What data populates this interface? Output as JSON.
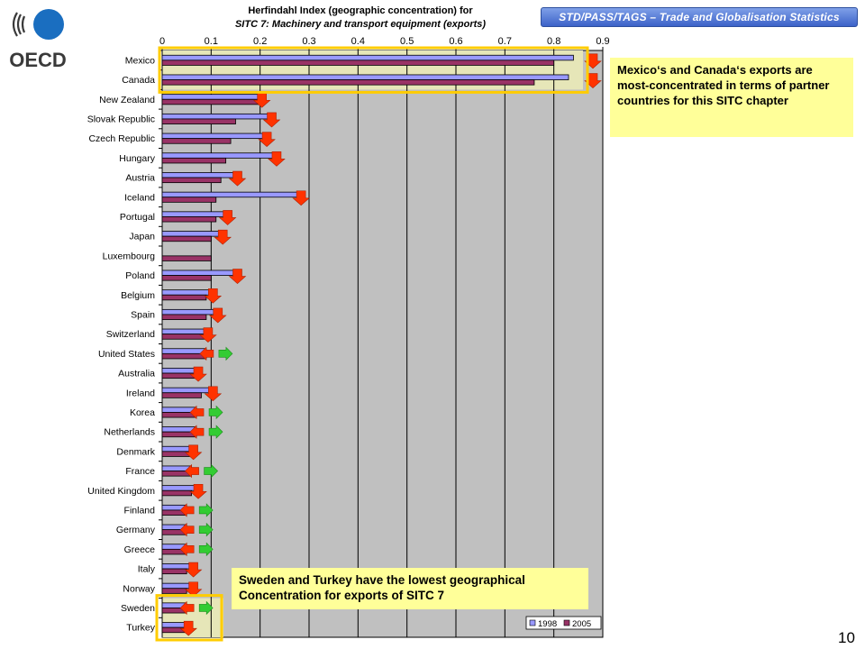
{
  "header": {
    "banner": "STD/PASS/TAGS – Trade and Globalisation Statistics",
    "logo_text": "OECD"
  },
  "chart_data": {
    "type": "bar",
    "orientation": "horizontal",
    "title_line1": "Herfindahl Index (geographic concentration) for",
    "title_line2": "SITC 7: Machinery and transport equipment (exports)",
    "xlim": [
      0,
      0.9
    ],
    "xticks": [
      "0",
      "0.1",
      "0.2",
      "0.3",
      "0.4",
      "0.5",
      "0.6",
      "0.7",
      "0.8",
      "0.9"
    ],
    "categories": [
      "Mexico",
      "Canada",
      "New Zealand",
      "Slovak Republic",
      "Czech Republic",
      "Hungary",
      "Austria",
      "Iceland",
      "Portugal",
      "Japan",
      "Luxembourg",
      "Poland",
      "Belgium",
      "Spain",
      "Switzerland",
      "United States",
      "Australia",
      "Ireland",
      "Korea",
      "Netherlands",
      "Denmark",
      "France",
      "United Kingdom",
      "Finland",
      "Germany",
      "Greece",
      "Italy",
      "Norway",
      "Sweden",
      "Turkey"
    ],
    "series": [
      {
        "name": "1998",
        "color": "#9999ff",
        "values": [
          0.84,
          0.83,
          0.2,
          0.22,
          0.21,
          0.23,
          0.15,
          0.28,
          0.13,
          0.12,
          0.0,
          0.15,
          0.1,
          0.11,
          0.09,
          0.09,
          0.07,
          0.1,
          0.07,
          0.07,
          0.06,
          0.06,
          0.07,
          0.05,
          0.05,
          0.05,
          0.06,
          0.06,
          0.05,
          0.05
        ]
      },
      {
        "name": "2005",
        "color": "#993366",
        "values": [
          0.8,
          0.76,
          0.2,
          0.15,
          0.14,
          0.13,
          0.12,
          0.11,
          0.11,
          0.1,
          0.1,
          0.1,
          0.09,
          0.09,
          0.09,
          0.09,
          0.07,
          0.08,
          0.07,
          0.07,
          0.06,
          0.06,
          0.06,
          0.05,
          0.05,
          0.05,
          0.05,
          0.05,
          0.05,
          0.05
        ]
      }
    ],
    "trend_arrows": [
      "down",
      "down",
      "down",
      "down",
      "down",
      "down",
      "down",
      "down",
      "down",
      "down",
      "none",
      "down",
      "down",
      "down",
      "down",
      "both",
      "down",
      "down",
      "both",
      "both",
      "down",
      "both",
      "down",
      "both",
      "both",
      "both",
      "down",
      "down",
      "both",
      "down"
    ],
    "legend_position": "bottom-right",
    "grid": true,
    "plot_background": "#c0c0c0",
    "highlight_color": "#ffcc00"
  },
  "notes": {
    "top": "Mexico‘s and Canada‘s exports are most-concentrated in terms of partner countries for this SITC chapter",
    "bottom": "Sweden and Turkey have the lowest geographical Concentration for exports of SITC 7"
  },
  "page_number": "10"
}
